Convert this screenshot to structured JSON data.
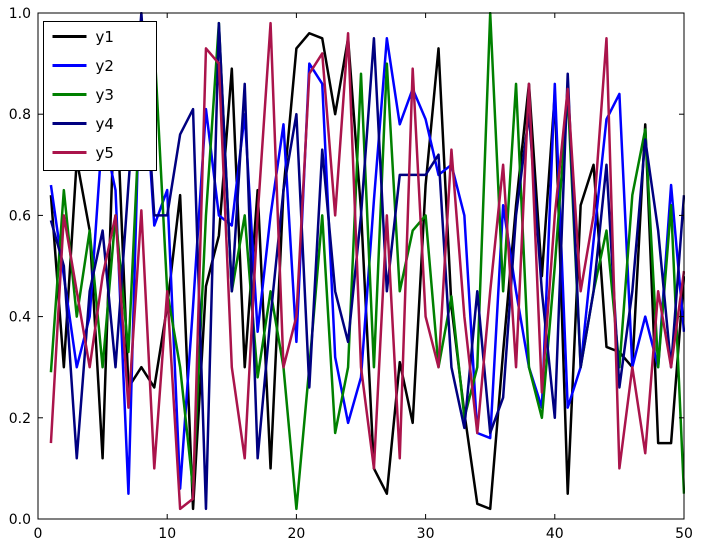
{
  "chart_data": {
    "type": "line",
    "title": "",
    "xlabel": "",
    "ylabel": "",
    "xlim": [
      0,
      50
    ],
    "ylim": [
      0.0,
      1.0
    ],
    "grid": false,
    "background_color": "#ffffff",
    "axes_color": "#000000",
    "line_width": 2.5,
    "xticks": [
      0,
      10,
      20,
      30,
      40,
      50
    ],
    "xtick_labels": [
      "0",
      "10",
      "20",
      "30",
      "40",
      "50"
    ],
    "yticks": [
      0.0,
      0.2,
      0.4,
      0.6,
      0.8,
      1.0
    ],
    "ytick_labels": [
      "0.0",
      "0.2",
      "0.4",
      "0.6",
      "0.8",
      "1.0"
    ],
    "legend": {
      "position": "upper left",
      "entries": [
        "y1",
        "y2",
        "y3",
        "y4",
        "y5"
      ]
    },
    "x": [
      1,
      2,
      3,
      4,
      5,
      6,
      7,
      8,
      9,
      10,
      11,
      12,
      13,
      14,
      15,
      16,
      17,
      18,
      19,
      20,
      21,
      22,
      23,
      24,
      25,
      26,
      27,
      28,
      29,
      30,
      31,
      32,
      33,
      34,
      35,
      36,
      37,
      38,
      39,
      40,
      41,
      42,
      43,
      44,
      45,
      46,
      47,
      48,
      49,
      50
    ],
    "series": [
      {
        "name": "y1",
        "color": "#000000",
        "values": [
          0.64,
          0.3,
          0.71,
          0.57,
          0.12,
          0.88,
          0.26,
          0.3,
          0.26,
          0.42,
          0.64,
          0.02,
          0.46,
          0.56,
          0.89,
          0.3,
          0.65,
          0.1,
          0.65,
          0.93,
          0.96,
          0.95,
          0.8,
          0.95,
          0.61,
          0.1,
          0.05,
          0.31,
          0.19,
          0.66,
          0.93,
          0.42,
          0.21,
          0.03,
          0.02,
          0.33,
          0.62,
          0.86,
          0.48,
          0.84,
          0.05,
          0.62,
          0.7,
          0.34,
          0.33,
          0.3,
          0.78,
          0.15,
          0.15,
          0.48
        ]
      },
      {
        "name": "y2",
        "color": "#0000ff",
        "values": [
          0.66,
          0.48,
          0.3,
          0.4,
          0.77,
          0.65,
          0.05,
          0.97,
          0.58,
          0.65,
          0.06,
          0.42,
          0.81,
          0.6,
          0.58,
          0.8,
          0.37,
          0.6,
          0.78,
          0.35,
          0.9,
          0.86,
          0.32,
          0.19,
          0.28,
          0.63,
          0.95,
          0.78,
          0.85,
          0.79,
          0.68,
          0.7,
          0.6,
          0.17,
          0.16,
          0.62,
          0.45,
          0.3,
          0.22,
          0.86,
          0.22,
          0.3,
          0.55,
          0.79,
          0.84,
          0.3,
          0.4,
          0.3,
          0.66,
          0.37
        ]
      },
      {
        "name": "y3",
        "color": "#008000",
        "values": [
          0.29,
          0.65,
          0.4,
          0.57,
          0.3,
          0.6,
          0.33,
          0.87,
          0.94,
          0.45,
          0.3,
          0.06,
          0.6,
          0.98,
          0.45,
          0.6,
          0.28,
          0.45,
          0.3,
          0.02,
          0.3,
          0.6,
          0.17,
          0.3,
          0.88,
          0.3,
          0.9,
          0.45,
          0.57,
          0.6,
          0.3,
          0.44,
          0.2,
          0.3,
          1.0,
          0.45,
          0.86,
          0.3,
          0.2,
          0.5,
          0.84,
          0.3,
          0.45,
          0.57,
          0.3,
          0.64,
          0.77,
          0.3,
          0.62,
          0.05
        ]
      },
      {
        "name": "y4",
        "color": "#000080",
        "values": [
          0.59,
          0.5,
          0.12,
          0.45,
          0.57,
          0.3,
          0.66,
          1.0,
          0.6,
          0.6,
          0.76,
          0.81,
          0.02,
          0.98,
          0.45,
          0.86,
          0.12,
          0.4,
          0.65,
          0.8,
          0.26,
          0.73,
          0.45,
          0.35,
          0.6,
          0.95,
          0.45,
          0.68,
          0.68,
          0.68,
          0.72,
          0.3,
          0.18,
          0.45,
          0.17,
          0.24,
          0.6,
          0.8,
          0.45,
          0.2,
          0.88,
          0.3,
          0.45,
          0.7,
          0.26,
          0.45,
          0.75,
          0.57,
          0.3,
          0.64
        ]
      },
      {
        "name": "y5",
        "color": "#aa144b",
        "values": [
          0.15,
          0.6,
          0.45,
          0.3,
          0.48,
          0.6,
          0.22,
          0.61,
          0.1,
          0.45,
          0.02,
          0.04,
          0.93,
          0.9,
          0.3,
          0.12,
          0.6,
          0.98,
          0.3,
          0.4,
          0.88,
          0.92,
          0.6,
          0.96,
          0.3,
          0.1,
          0.6,
          0.12,
          0.89,
          0.4,
          0.3,
          0.73,
          0.4,
          0.17,
          0.45,
          0.7,
          0.3,
          0.86,
          0.25,
          0.6,
          0.85,
          0.45,
          0.6,
          0.95,
          0.1,
          0.3,
          0.13,
          0.45,
          0.3,
          0.49
        ]
      }
    ]
  }
}
